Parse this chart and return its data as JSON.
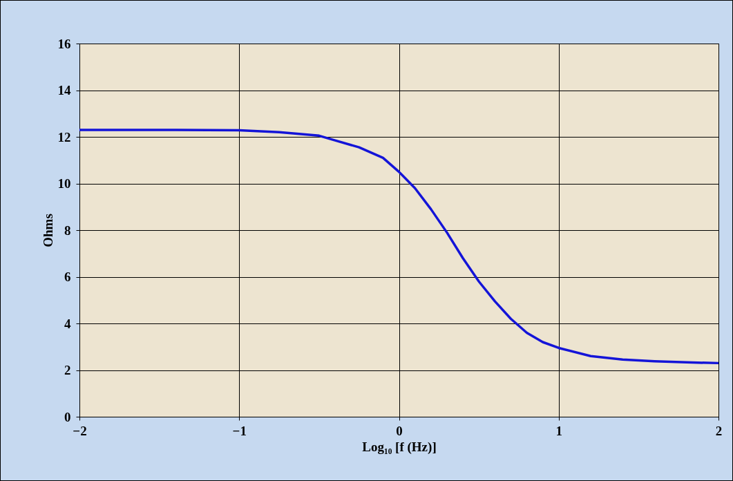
{
  "chart_data": {
    "type": "line",
    "xlabel": "Log₁₀ [f (Hz)]",
    "ylabel": "Ohms",
    "x": [
      -2,
      -1.5,
      -1,
      -0.75,
      -0.5,
      -0.4,
      -0.25,
      -0.1,
      0,
      0.1,
      0.2,
      0.3,
      0.4,
      0.5,
      0.6,
      0.7,
      0.8,
      0.9,
      1,
      1.2,
      1.4,
      1.6,
      1.8,
      2
    ],
    "series": [
      {
        "color": "#1414d8",
        "values": [
          12.3,
          12.3,
          12.28,
          12.2,
          12.05,
          11.85,
          11.55,
          11.1,
          10.5,
          9.8,
          8.9,
          7.9,
          6.8,
          5.8,
          4.95,
          4.2,
          3.6,
          3.2,
          2.95,
          2.6,
          2.45,
          2.38,
          2.33,
          2.3
        ]
      }
    ],
    "xlim": [
      -2,
      2
    ],
    "xticks": [
      -2,
      -1,
      0,
      1,
      2
    ],
    "ylim": [
      0,
      16
    ],
    "yticks": [
      0,
      2,
      4,
      6,
      8,
      10,
      12,
      14,
      16
    ],
    "grid": true,
    "legend": false,
    "marker": "none",
    "line_style": "solid"
  }
}
